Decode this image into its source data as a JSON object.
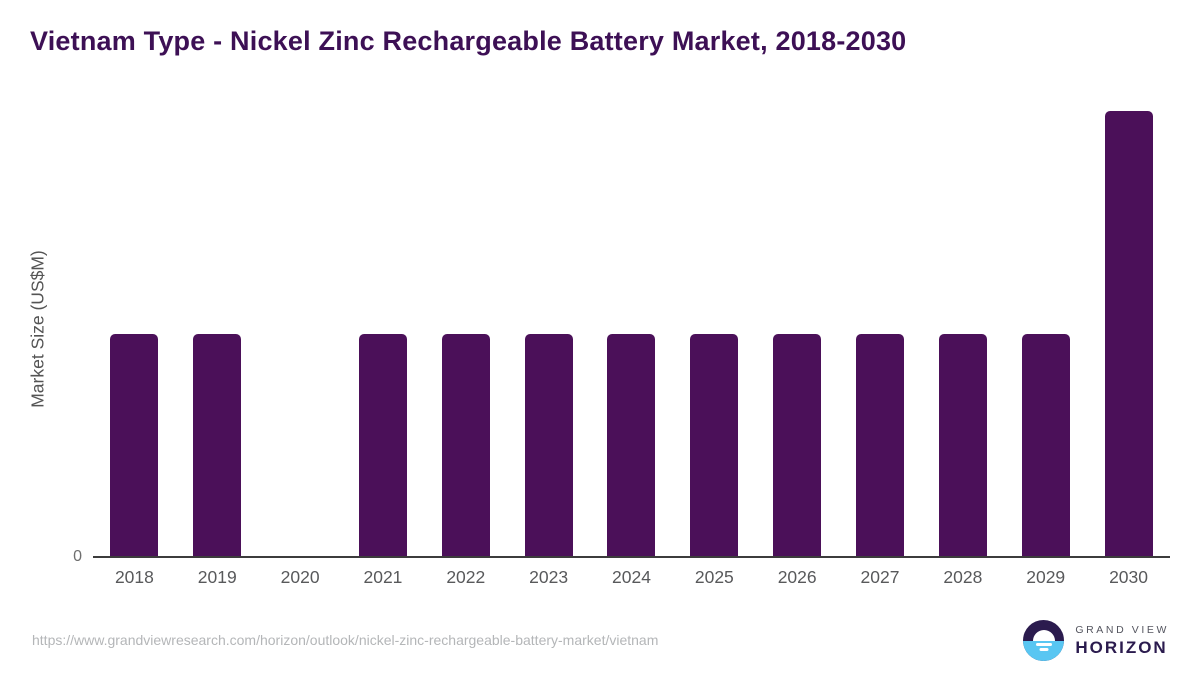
{
  "page": {
    "background_color": "#ffffff"
  },
  "chart_data": {
    "type": "bar",
    "title": "Vietnam Type - Nickel Zinc Rechargeable Battery Market, 2018-2030",
    "xlabel": "",
    "ylabel": "Market Size (US$M)",
    "categories": [
      "2018",
      "2019",
      "2020",
      "2021",
      "2022",
      "2023",
      "2024",
      "2025",
      "2026",
      "2027",
      "2028",
      "2029",
      "2030"
    ],
    "values": [
      0.5,
      0.5,
      0,
      0.5,
      0.5,
      0.5,
      0.5,
      0.5,
      0.5,
      0.5,
      0.5,
      0.5,
      1.0
    ],
    "ylim": [
      0,
      1.025
    ],
    "y_tick_labels": [
      "0"
    ],
    "grid": "off",
    "legend": "none",
    "bar_color": "#4b1059",
    "title_color": "#3d1055",
    "axis_line_color": "#3c3c3c"
  },
  "footer": {
    "source_url": "https://www.grandviewresearch.com/horizon/outlook/nickel-zinc-rechargeable-battery-market/vietnam",
    "logo": {
      "line1": "GRAND VIEW",
      "line2": "HORIZON",
      "icon": "horizon-sun-icon",
      "navy_color": "#2b1b4e",
      "blue_color": "#59c6f2"
    }
  }
}
